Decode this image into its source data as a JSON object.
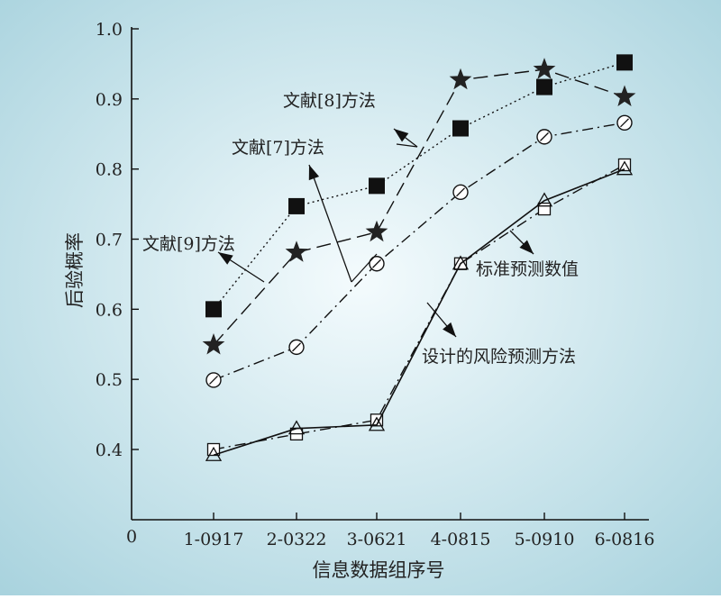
{
  "chart_data": {
    "type": "line",
    "xlabel": "信息数据组序号",
    "ylabel": "后验概率",
    "origin_label": "0",
    "categories": [
      "1-0917",
      "2-0322",
      "3-0621",
      "4-0815",
      "5-0910",
      "6-0816"
    ],
    "yticks": [
      "0.4",
      "0.5",
      "0.6",
      "0.7",
      "0.8",
      "0.9",
      "1.0"
    ],
    "ylim": [
      0.3,
      1.0
    ],
    "grid": false,
    "series": [
      {
        "name": "文献[8]方法",
        "marker": "filled-square",
        "line_style": "dotted",
        "values": [
          0.6,
          0.747,
          0.776,
          0.858,
          0.917,
          0.952
        ]
      },
      {
        "name": "文献[7]方法",
        "marker": "star",
        "line_style": "dashed",
        "values": [
          0.549,
          0.681,
          0.71,
          0.927,
          0.942,
          0.903
        ]
      },
      {
        "name": "文献[9]方法",
        "marker": "slashed-circle",
        "line_style": "dash-dot",
        "values": [
          0.499,
          0.546,
          0.665,
          0.767,
          0.846,
          0.866
        ]
      },
      {
        "name": "标准预测数值",
        "marker": "open-square",
        "line_style": "dash-dot",
        "values": [
          0.4,
          0.422,
          0.442,
          0.665,
          0.743,
          0.806
        ]
      },
      {
        "name": "设计的风险预测方法",
        "marker": "open-triangle",
        "line_style": "solid",
        "values": [
          0.392,
          0.43,
          0.435,
          0.665,
          0.755,
          0.8
        ]
      }
    ],
    "annotations": [
      "文献[8]方法",
      "文献[7]方法",
      "文献[9]方法",
      "标准预测数值",
      "设计的风险预测方法"
    ]
  },
  "colors": {
    "background_center": "#f4fbfd",
    "background_edge": "#a9d3de",
    "ink": "#111111"
  }
}
